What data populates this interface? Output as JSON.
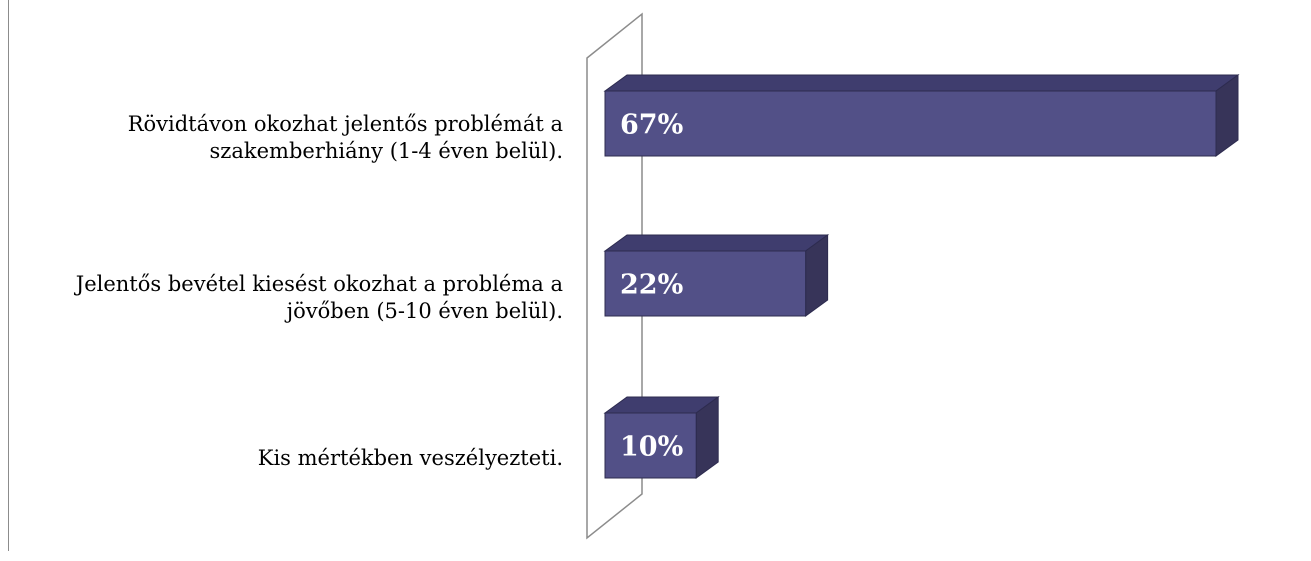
{
  "colors": {
    "bar_front": "#525087",
    "bar_top": "#3f3d6e",
    "bar_side": "#373459",
    "bar_edge": "#2d2b4f",
    "wall_stroke": "#8c8c8c",
    "label_text": "#000000",
    "value_text": "#ffffff"
  },
  "chart_data": {
    "type": "bar",
    "orientation": "horizontal",
    "style": "3d",
    "categories": [
      "Rövidtávon okozhat jelentős problémát a szakemberhiány (1-4 éven belül).",
      "Jelentős bevétel kiesést okozhat a probléma a jövőben (5-10 éven belül).",
      "Kis mértékben veszélyezteti."
    ],
    "category_lines": [
      [
        "Rövidtávon okozhat jelentős problémát a",
        "szakemberhiány (1-4 éven belül)."
      ],
      [
        "Jelentős bevétel kiesést okozhat a probléma a",
        "jövőben (5-10 éven belül)."
      ],
      [
        "Kis mértékben veszélyezteti."
      ]
    ],
    "values": [
      67,
      22,
      10
    ],
    "value_labels": [
      "67%",
      "22%",
      "10%"
    ],
    "unit": "%",
    "xlim": [
      0,
      67
    ],
    "grid": false,
    "legend": "none"
  }
}
